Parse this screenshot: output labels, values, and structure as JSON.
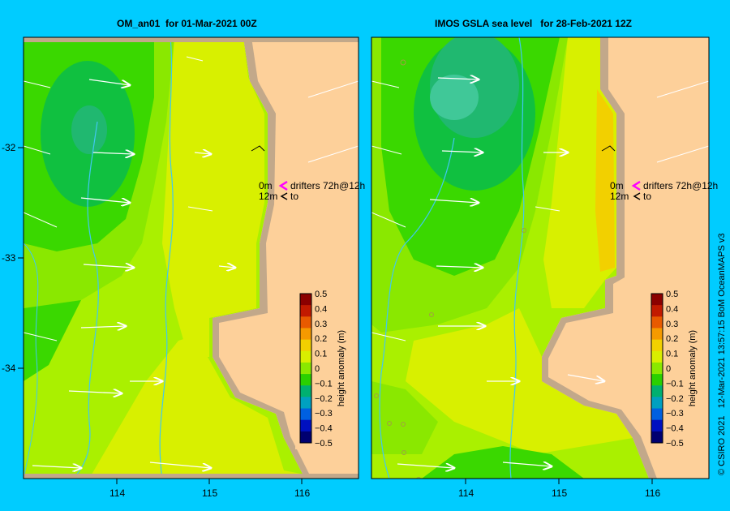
{
  "panels": [
    {
      "title": "OM_an01  for 01-Mar-2021 00Z"
    },
    {
      "title": "IMOS GSLA sea level   for 28-Feb-2021 12Z"
    }
  ],
  "axes": {
    "lat_labels": [
      "-32",
      "-33",
      "-34"
    ],
    "lon_labels": [
      "114",
      "115",
      "116"
    ]
  },
  "legend_note": {
    "row1_depth": "0m",
    "row1_text": "drifters 72h@12h",
    "row2_depth": "12m",
    "row2_text": "to",
    "drifter_color": "#ff00ff"
  },
  "colorbar": {
    "title": "height anomaly (m)",
    "ticks": [
      "0.5",
      "0.4",
      "0.3",
      "0.2",
      "0.1",
      "0",
      "−0.1",
      "−0.2",
      "−0.3",
      "−0.4",
      "−0.5"
    ],
    "colors": [
      "#8b0000",
      "#c21a00",
      "#e85a00",
      "#f59a00",
      "#f2d000",
      "#d9ee00",
      "#8ae800",
      "#2ad000",
      "#00b070",
      "#00a0c0",
      "#0060e0",
      "#0010c0",
      "#000070"
    ]
  },
  "credit": "© CSIRO 2021   12-Mar-2021 13:57:15 BoM OceanMAPS v3"
}
